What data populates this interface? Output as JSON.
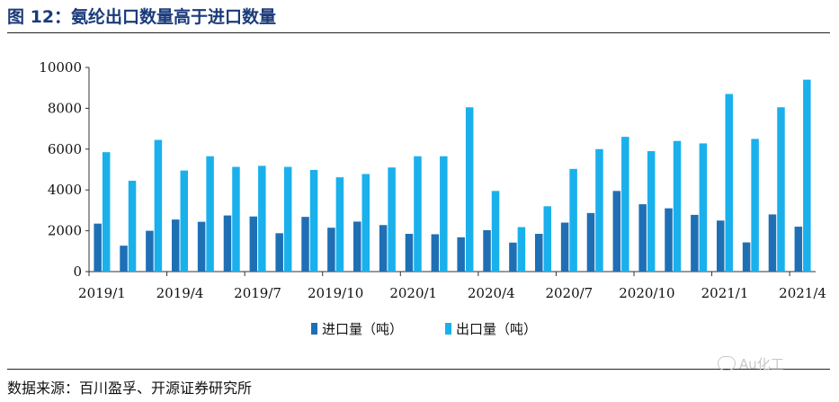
{
  "figure": {
    "title": "图 12：氨纶出口数量高于进口数量",
    "source": "数据来源：百川盈孚、开源证券研究所",
    "watermark": "Au化工"
  },
  "chart_data": {
    "type": "bar",
    "title": "图 12：氨纶出口数量高于进口数量",
    "xlabel": "",
    "ylabel": "",
    "ylim": [
      0,
      10000
    ],
    "yticks": [
      0,
      2000,
      4000,
      6000,
      8000,
      10000
    ],
    "categories": [
      "2019/1",
      "2019/2",
      "2019/3",
      "2019/4",
      "2019/5",
      "2019/6",
      "2019/7",
      "2019/8",
      "2019/9",
      "2019/10",
      "2019/11",
      "2019/12",
      "2020/1",
      "2020/2",
      "2020/3",
      "2020/4",
      "2020/5",
      "2020/6",
      "2020/7",
      "2020/8",
      "2020/9",
      "2020/10",
      "2020/11",
      "2020/12",
      "2021/1",
      "2021/2",
      "2021/3",
      "2021/4"
    ],
    "xtick_labels": [
      "2019/1",
      "2019/4",
      "2019/7",
      "2019/10",
      "2020/1",
      "2020/4",
      "2020/7",
      "2020/10",
      "2021/1",
      "2021/4"
    ],
    "series": [
      {
        "name": "进口量（吨）",
        "color": "#1f6fb5",
        "values": [
          2350,
          1270,
          2000,
          2550,
          2440,
          2750,
          2700,
          1880,
          2680,
          2150,
          2450,
          2280,
          1850,
          1830,
          1680,
          2030,
          1420,
          1850,
          2400,
          2870,
          3950,
          3300,
          3100,
          2780,
          2500,
          1430,
          2800,
          2200
        ]
      },
      {
        "name": "出口量（吨）",
        "color": "#1ab0ec",
        "values": [
          5850,
          4450,
          6450,
          4950,
          5650,
          5130,
          5180,
          5130,
          4980,
          4620,
          4780,
          5100,
          5650,
          5650,
          8050,
          3950,
          2180,
          3200,
          5030,
          6000,
          6600,
          5900,
          6400,
          6280,
          8700,
          6500,
          8050,
          9400
        ]
      }
    ],
    "legend": {
      "position": "bottom-center"
    },
    "grid": false
  }
}
